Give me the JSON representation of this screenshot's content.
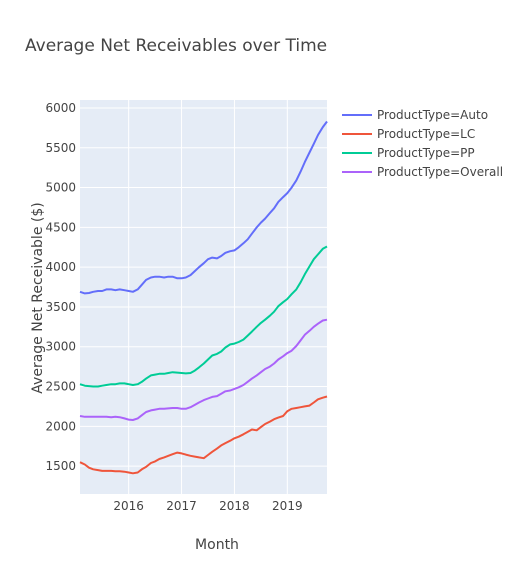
{
  "chart_data": {
    "type": "line",
    "title": "Average Net Receivables over Time",
    "xlabel": "Month",
    "ylabel": "Average Net Receivable ($)",
    "xlim": [
      2015.08,
      2019.75
    ],
    "ylim": [
      1150,
      6100
    ],
    "x_ticks": [
      2016,
      2017,
      2018,
      2019
    ],
    "x_tick_labels": [
      "2016",
      "2017",
      "2018",
      "2019"
    ],
    "y_ticks": [
      1500,
      2000,
      2500,
      3000,
      3500,
      4000,
      4500,
      5000,
      5500,
      6000
    ],
    "y_tick_labels": [
      "1500",
      "2000",
      "2500",
      "3000",
      "3500",
      "4000",
      "4500",
      "5000",
      "5500",
      "6000"
    ],
    "grid": true,
    "legend_position": "right",
    "series": [
      {
        "name": "ProductType=Auto",
        "color": "#636efa",
        "x": [
          2015.08,
          2015.17,
          2015.25,
          2015.33,
          2015.42,
          2015.5,
          2015.58,
          2015.67,
          2015.75,
          2015.83,
          2015.92,
          2016.0,
          2016.08,
          2016.17,
          2016.25,
          2016.33,
          2016.42,
          2016.5,
          2016.58,
          2016.67,
          2016.75,
          2016.83,
          2016.92,
          2017.0,
          2017.08,
          2017.17,
          2017.25,
          2017.33,
          2017.42,
          2017.5,
          2017.58,
          2017.67,
          2017.75,
          2017.83,
          2017.92,
          2018.0,
          2018.08,
          2018.17,
          2018.25,
          2018.33,
          2018.42,
          2018.5,
          2018.58,
          2018.67,
          2018.75,
          2018.83,
          2018.92,
          2019.0,
          2019.08,
          2019.17,
          2019.25,
          2019.33,
          2019.42,
          2019.5,
          2019.58,
          2019.67,
          2019.75
        ],
        "values": [
          3690,
          3670,
          3675,
          3690,
          3700,
          3700,
          3720,
          3720,
          3710,
          3720,
          3710,
          3700,
          3690,
          3720,
          3780,
          3840,
          3870,
          3880,
          3880,
          3870,
          3880,
          3880,
          3860,
          3860,
          3870,
          3900,
          3950,
          4000,
          4050,
          4100,
          4120,
          4110,
          4140,
          4180,
          4200,
          4210,
          4250,
          4300,
          4350,
          4420,
          4500,
          4560,
          4610,
          4680,
          4740,
          4820,
          4880,
          4930,
          5000,
          5090,
          5200,
          5320,
          5440,
          5550,
          5660,
          5760,
          5830
        ]
      },
      {
        "name": "ProductType=LC",
        "color": "#ef553b",
        "x": [
          2015.08,
          2015.17,
          2015.25,
          2015.33,
          2015.42,
          2015.5,
          2015.58,
          2015.67,
          2015.75,
          2015.83,
          2015.92,
          2016.0,
          2016.08,
          2016.17,
          2016.25,
          2016.33,
          2016.42,
          2016.5,
          2016.58,
          2016.67,
          2016.75,
          2016.83,
          2016.92,
          2017.0,
          2017.08,
          2017.17,
          2017.25,
          2017.33,
          2017.42,
          2017.5,
          2017.58,
          2017.67,
          2017.75,
          2017.83,
          2017.92,
          2018.0,
          2018.08,
          2018.17,
          2018.25,
          2018.33,
          2018.42,
          2018.5,
          2018.58,
          2018.67,
          2018.75,
          2018.83,
          2018.92,
          2019.0,
          2019.08,
          2019.17,
          2019.25,
          2019.33,
          2019.42,
          2019.5,
          2019.58,
          2019.67,
          2019.75
        ],
        "values": [
          1550,
          1520,
          1480,
          1460,
          1450,
          1440,
          1440,
          1440,
          1435,
          1435,
          1430,
          1420,
          1410,
          1420,
          1460,
          1490,
          1540,
          1560,
          1590,
          1610,
          1630,
          1650,
          1670,
          1660,
          1645,
          1630,
          1620,
          1610,
          1600,
          1640,
          1680,
          1720,
          1760,
          1790,
          1820,
          1850,
          1870,
          1900,
          1930,
          1960,
          1950,
          1990,
          2030,
          2060,
          2090,
          2110,
          2130,
          2190,
          2220,
          2230,
          2240,
          2250,
          2260,
          2300,
          2340,
          2360,
          2375
        ]
      },
      {
        "name": "ProductType=PP",
        "color": "#00cc96",
        "x": [
          2015.08,
          2015.17,
          2015.25,
          2015.33,
          2015.42,
          2015.5,
          2015.58,
          2015.67,
          2015.75,
          2015.83,
          2015.92,
          2016.0,
          2016.08,
          2016.17,
          2016.25,
          2016.33,
          2016.42,
          2016.5,
          2016.58,
          2016.67,
          2016.75,
          2016.83,
          2016.92,
          2017.0,
          2017.08,
          2017.17,
          2017.25,
          2017.33,
          2017.42,
          2017.5,
          2017.58,
          2017.67,
          2017.75,
          2017.83,
          2017.92,
          2018.0,
          2018.08,
          2018.17,
          2018.25,
          2018.33,
          2018.42,
          2018.5,
          2018.58,
          2018.67,
          2018.75,
          2018.83,
          2018.92,
          2019.0,
          2019.08,
          2019.17,
          2019.25,
          2019.33,
          2019.42,
          2019.5,
          2019.58,
          2019.67,
          2019.75
        ],
        "values": [
          2530,
          2510,
          2505,
          2500,
          2500,
          2510,
          2520,
          2530,
          2530,
          2540,
          2540,
          2530,
          2520,
          2530,
          2560,
          2600,
          2640,
          2650,
          2660,
          2660,
          2670,
          2680,
          2675,
          2670,
          2665,
          2670,
          2700,
          2740,
          2790,
          2840,
          2890,
          2910,
          2940,
          2990,
          3030,
          3040,
          3060,
          3090,
          3140,
          3190,
          3250,
          3300,
          3340,
          3390,
          3440,
          3510,
          3560,
          3600,
          3660,
          3720,
          3810,
          3910,
          4010,
          4100,
          4160,
          4230,
          4260
        ]
      },
      {
        "name": "ProductType=Overall",
        "color": "#ab63fa",
        "x": [
          2015.08,
          2015.17,
          2015.25,
          2015.33,
          2015.42,
          2015.5,
          2015.58,
          2015.67,
          2015.75,
          2015.83,
          2015.92,
          2016.0,
          2016.08,
          2016.17,
          2016.25,
          2016.33,
          2016.42,
          2016.5,
          2016.58,
          2016.67,
          2016.75,
          2016.83,
          2016.92,
          2017.0,
          2017.08,
          2017.17,
          2017.25,
          2017.33,
          2017.42,
          2017.5,
          2017.58,
          2017.67,
          2017.75,
          2017.83,
          2017.92,
          2018.0,
          2018.08,
          2018.17,
          2018.25,
          2018.33,
          2018.42,
          2018.5,
          2018.58,
          2018.67,
          2018.75,
          2018.83,
          2018.92,
          2019.0,
          2019.08,
          2019.17,
          2019.25,
          2019.33,
          2019.42,
          2019.5,
          2019.58,
          2019.67,
          2019.75
        ],
        "values": [
          2130,
          2120,
          2120,
          2120,
          2120,
          2120,
          2120,
          2115,
          2120,
          2115,
          2100,
          2085,
          2080,
          2100,
          2140,
          2180,
          2200,
          2210,
          2220,
          2220,
          2225,
          2230,
          2230,
          2220,
          2220,
          2240,
          2270,
          2300,
          2330,
          2350,
          2370,
          2380,
          2410,
          2440,
          2450,
          2470,
          2490,
          2520,
          2560,
          2600,
          2640,
          2680,
          2720,
          2750,
          2790,
          2840,
          2880,
          2920,
          2950,
          3010,
          3080,
          3150,
          3200,
          3250,
          3290,
          3330,
          3340
        ]
      }
    ]
  }
}
